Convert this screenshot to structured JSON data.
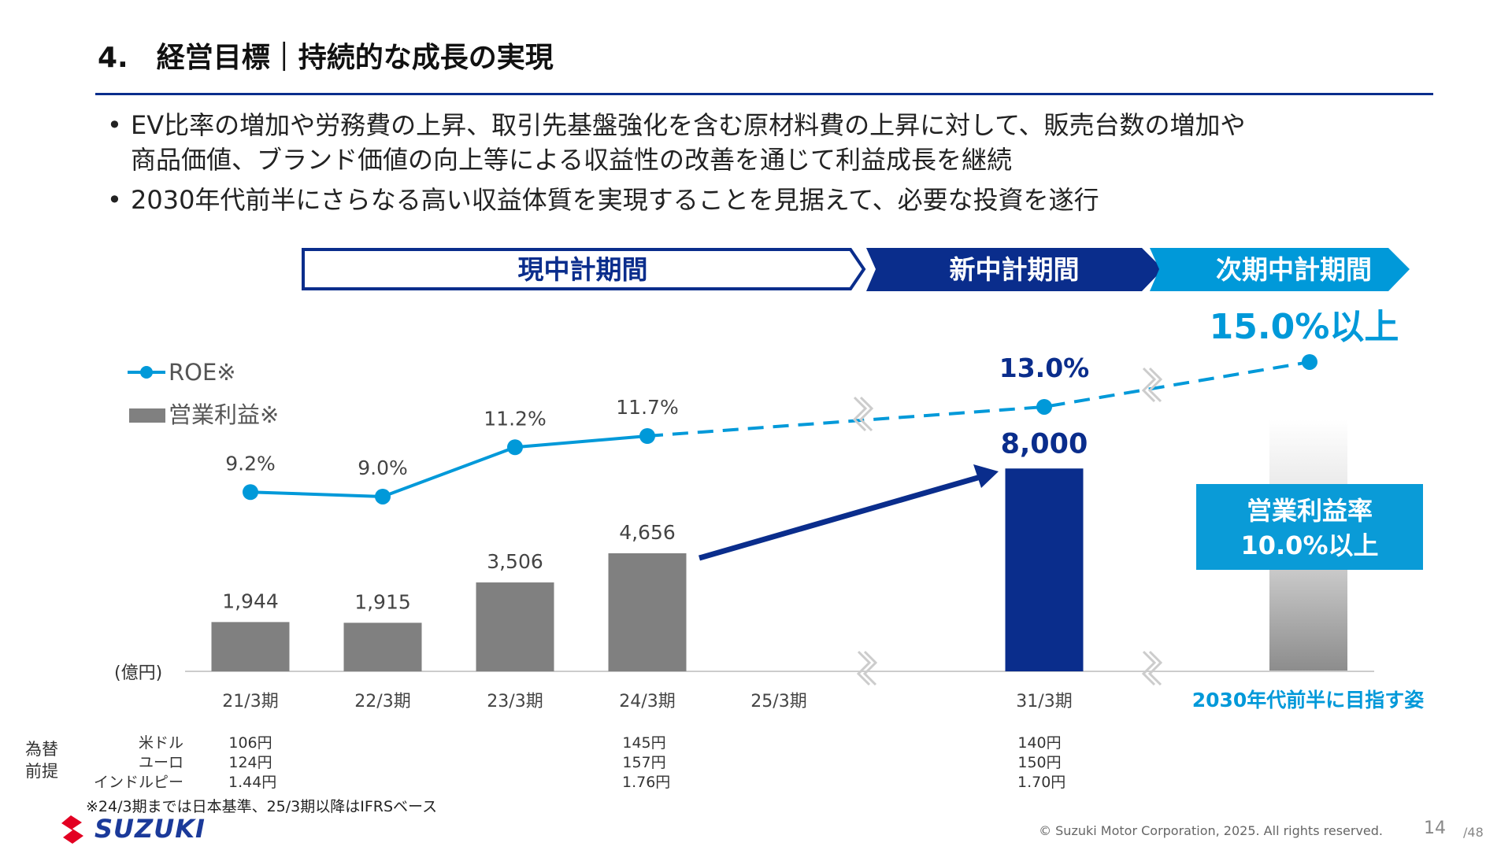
{
  "title": "4.　経営目標｜持続的な成長の実現",
  "bullets": [
    {
      "line1": "EV比率の増加や労務費の上昇、取引先基盤強化を含む原材料費の上昇に対して、販売台数の増加や",
      "line2": "商品価値、ブランド価値の向上等による収益性の改善を通じて利益成長を継続"
    },
    {
      "line1": "2030年代前半にさらなる高い収益体質を実現することを見据えて、必要な投資を遂行"
    }
  ],
  "periods": {
    "current": "現中計期間",
    "new": "新中計期間",
    "next": "次期中計期間"
  },
  "colors": {
    "navy": "#0a2d8c",
    "light_blue": "#0099d9",
    "gray_bar": "#808080"
  },
  "chart_data": {
    "type": "bar+line",
    "categories": [
      "21/3期",
      "22/3期",
      "23/3期",
      "24/3期",
      "25/3期",
      "31/3期",
      "2030年代前半に目指す姿"
    ],
    "unit_label": "(億円)",
    "legend": {
      "roe": "ROE※",
      "op_profit": "営業利益※",
      "placement": "top-left"
    },
    "series": [
      {
        "name": "営業利益※",
        "type": "bar",
        "values": [
          1944,
          1915,
          3506,
          4656,
          null,
          8000,
          null
        ],
        "labels": [
          "1,944",
          "1,915",
          "3,506",
          "4,656",
          "",
          "8,000",
          ""
        ]
      },
      {
        "name": "ROE※",
        "type": "line",
        "values": [
          9.2,
          9.0,
          11.2,
          11.7,
          null,
          13.0,
          15.0
        ],
        "labels": [
          "9.2%",
          "9.0%",
          "11.2%",
          "11.7%",
          "",
          "13.0%",
          "15.0%以上"
        ]
      }
    ],
    "target_box": {
      "line1": "営業利益率",
      "line2": "10.0%以上"
    },
    "grid": false
  },
  "fx": {
    "heading": [
      "為替",
      "前提"
    ],
    "rows": [
      {
        "label": "米ドル",
        "values": [
          "106円",
          "145円",
          "140円"
        ]
      },
      {
        "label": "ユーロ",
        "values": [
          "124円",
          "157円",
          "150円"
        ]
      },
      {
        "label": "インドルピー",
        "values": [
          "1.44円",
          "1.76円",
          "1.70円"
        ]
      }
    ]
  },
  "note": "※24/3期までは日本基準、25/3期以降はIFRSベース",
  "logo": "SUZUKI",
  "copyright": "© Suzuki Motor Corporation, 2025. All rights reserved.",
  "page": {
    "current": "14",
    "total": "/48"
  }
}
